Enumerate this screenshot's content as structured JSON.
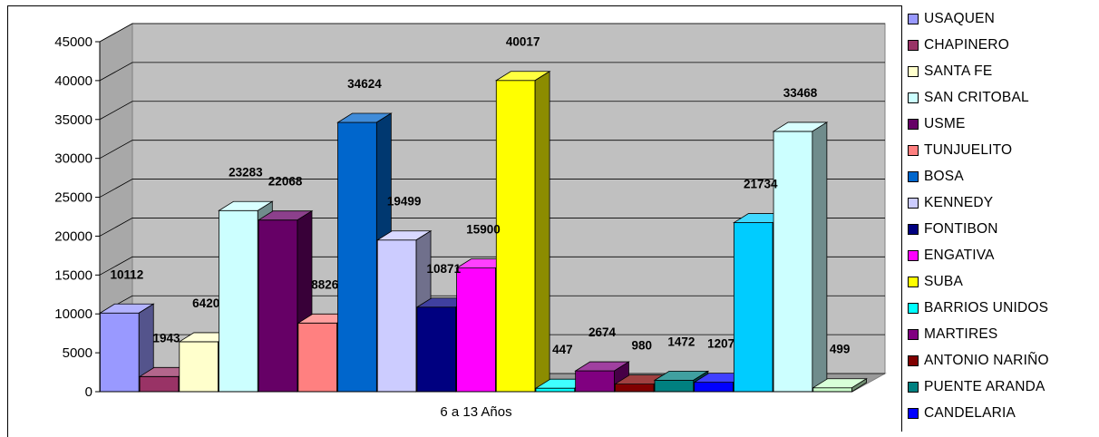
{
  "chart_data": {
    "type": "bar",
    "title": "",
    "xlabel": "",
    "ylabel": "",
    "categories": [
      "6 a 13 Años"
    ],
    "ylim": [
      0,
      45000
    ],
    "yticks": [
      "0",
      "5000",
      "10000",
      "15000",
      "20000",
      "25000",
      "30000",
      "35000",
      "40000",
      "45000"
    ],
    "grid": true,
    "legend_position": "right",
    "series": [
      {
        "name": "USAQUEN",
        "values": [
          10112
        ],
        "label": "10112",
        "color": "#9999ff"
      },
      {
        "name": "CHAPINERO",
        "values": [
          1943
        ],
        "label": "1943",
        "color": "#993366"
      },
      {
        "name": "SANTA FE",
        "values": [
          6420
        ],
        "label": "6420",
        "color": "#ffffcc"
      },
      {
        "name": "SAN CRITOBAL",
        "values": [
          23283
        ],
        "label": "23283",
        "color": "#ccffff"
      },
      {
        "name": "USME",
        "values": [
          22068
        ],
        "label": "22068",
        "color": "#660066"
      },
      {
        "name": "TUNJUELITO",
        "values": [
          8826
        ],
        "label": "8826",
        "color": "#ff8080"
      },
      {
        "name": "BOSA",
        "values": [
          34624
        ],
        "label": "34624",
        "color": "#0066cc"
      },
      {
        "name": "KENNEDY",
        "values": [
          19499
        ],
        "label": "19499",
        "color": "#ccccff"
      },
      {
        "name": "FONTIBON",
        "values": [
          10871
        ],
        "label": "10871",
        "color": "#000080"
      },
      {
        "name": "ENGATIVA",
        "values": [
          15900
        ],
        "label": "15900",
        "color": "#ff00ff"
      },
      {
        "name": "SUBA",
        "values": [
          40017
        ],
        "label": "40017",
        "color": "#ffff00"
      },
      {
        "name": "BARRIOS UNIDOS",
        "values": [
          447
        ],
        "label": "447",
        "color": "#00ffff"
      },
      {
        "name": "MARTIRES",
        "values": [
          2674
        ],
        "label": "2674",
        "color": "#800080"
      },
      {
        "name": "ANTONIO NARIÑO",
        "values": [
          980
        ],
        "label": "980",
        "color": "#800000"
      },
      {
        "name": "PUENTE ARANDA",
        "values": [
          1472
        ],
        "label": "1472",
        "color": "#008080"
      },
      {
        "name": "CANDELARIA",
        "values": [
          1207
        ],
        "label": "1207",
        "color": "#0000ff"
      },
      {
        "name": "",
        "values": [
          21734
        ],
        "label": "21734",
        "color": "#00ccff"
      },
      {
        "name": "",
        "values": [
          33468
        ],
        "label": "33468",
        "color": "#ccffff"
      },
      {
        "name": "",
        "values": [
          499
        ],
        "label": "499",
        "color": "#ccffcc"
      }
    ]
  },
  "legend": {
    "items": [
      "USAQUEN",
      "CHAPINERO",
      "SANTA FE",
      "SAN CRITOBAL",
      "USME",
      "TUNJUELITO",
      "BOSA",
      "KENNEDY",
      "FONTIBON",
      "ENGATIVA",
      "SUBA",
      "BARRIOS UNIDOS",
      "MARTIRES",
      "ANTONIO NARIÑO",
      "PUENTE ARANDA",
      "CANDELARIA"
    ]
  }
}
